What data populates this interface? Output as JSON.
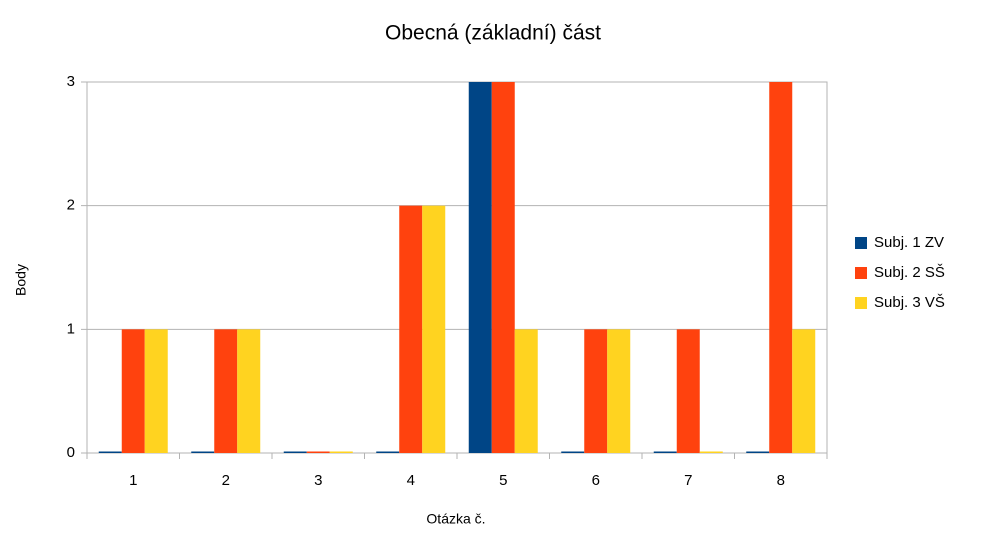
{
  "chart_data": {
    "type": "bar",
    "title": "Obecná (základní) část",
    "x_label": "Otázka č.",
    "y_label": "Body",
    "categories": [
      "1",
      "2",
      "3",
      "4",
      "5",
      "6",
      "7",
      "8"
    ],
    "series": [
      {
        "name": "Subj. 1 ZV",
        "color": "#004586",
        "values": [
          0,
          0,
          0,
          0,
          3,
          0,
          0,
          0
        ]
      },
      {
        "name": "Subj. 2 SŠ",
        "color": "#ff420e",
        "values": [
          1,
          1,
          0,
          2,
          3,
          1,
          1,
          3
        ]
      },
      {
        "name": "Subj. 3 VŠ",
        "color": "#ffd320",
        "values": [
          1,
          1,
          0,
          2,
          1,
          1,
          0,
          1
        ]
      }
    ],
    "ylim": [
      0,
      3
    ],
    "yticks": [
      0,
      1,
      2,
      3
    ],
    "grid": true,
    "legend": "right"
  }
}
